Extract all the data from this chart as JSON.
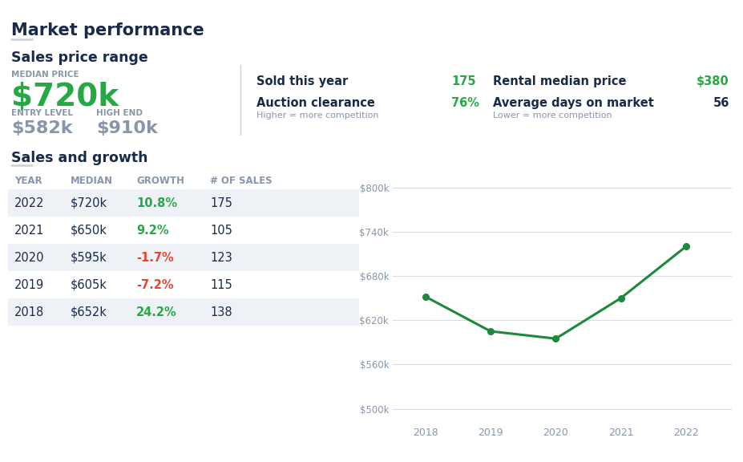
{
  "title": "Market performance",
  "sales_price_range_title": "Sales price range",
  "median_price_label": "MEDIAN PRICE",
  "median_price_value": "$720k",
  "entry_level_label": "ENTRY LEVEL",
  "entry_level_value": "$582k",
  "high_end_label": "HIGH END",
  "high_end_value": "$910k",
  "sold_this_year_label": "Sold this year",
  "sold_this_year_value": "175",
  "rental_median_label": "Rental median price",
  "rental_median_value": "$380",
  "auction_clearance_label": "Auction clearance",
  "auction_clearance_value": "76%",
  "auction_sub": "Higher = more competition",
  "avg_days_label": "Average days on market",
  "avg_days_value": "56",
  "avg_days_sub": "Lower = more competition",
  "sales_growth_title": "Sales and growth",
  "table_headers": [
    "YEAR",
    "MEDIAN",
    "GROWTH",
    "# OF SALES"
  ],
  "table_data": [
    [
      "2022",
      "$720k",
      "10.8%",
      "175"
    ],
    [
      "2021",
      "$650k",
      "9.2%",
      "105"
    ],
    [
      "2020",
      "$595k",
      "-1.7%",
      "123"
    ],
    [
      "2019",
      "$605k",
      "-7.2%",
      "115"
    ],
    [
      "2018",
      "$652k",
      "24.2%",
      "138"
    ]
  ],
  "growth_colors": [
    "#27a844",
    "#27a844",
    "#e8432d",
    "#e8432d",
    "#27a844"
  ],
  "chart_years": [
    2018,
    2019,
    2020,
    2021,
    2022
  ],
  "chart_values": [
    652,
    605,
    595,
    650,
    720
  ],
  "chart_color": "#1d8a3a",
  "bg_color": "#ffffff",
  "title_color": "#1a2b4a",
  "label_color": "#8896aa",
  "green_color": "#27a844",
  "dark_color": "#1a2b4a",
  "row_alt_color": "#eef2f7",
  "header_color": "#8896aa",
  "divider_color": "#c8d0da",
  "yticks": [
    500,
    560,
    620,
    680,
    740,
    800
  ],
  "ytick_labels": [
    "$500k",
    "$560k",
    "$620k",
    "$680k",
    "$740k",
    "$800k"
  ],
  "ylim": [
    480,
    830
  ]
}
